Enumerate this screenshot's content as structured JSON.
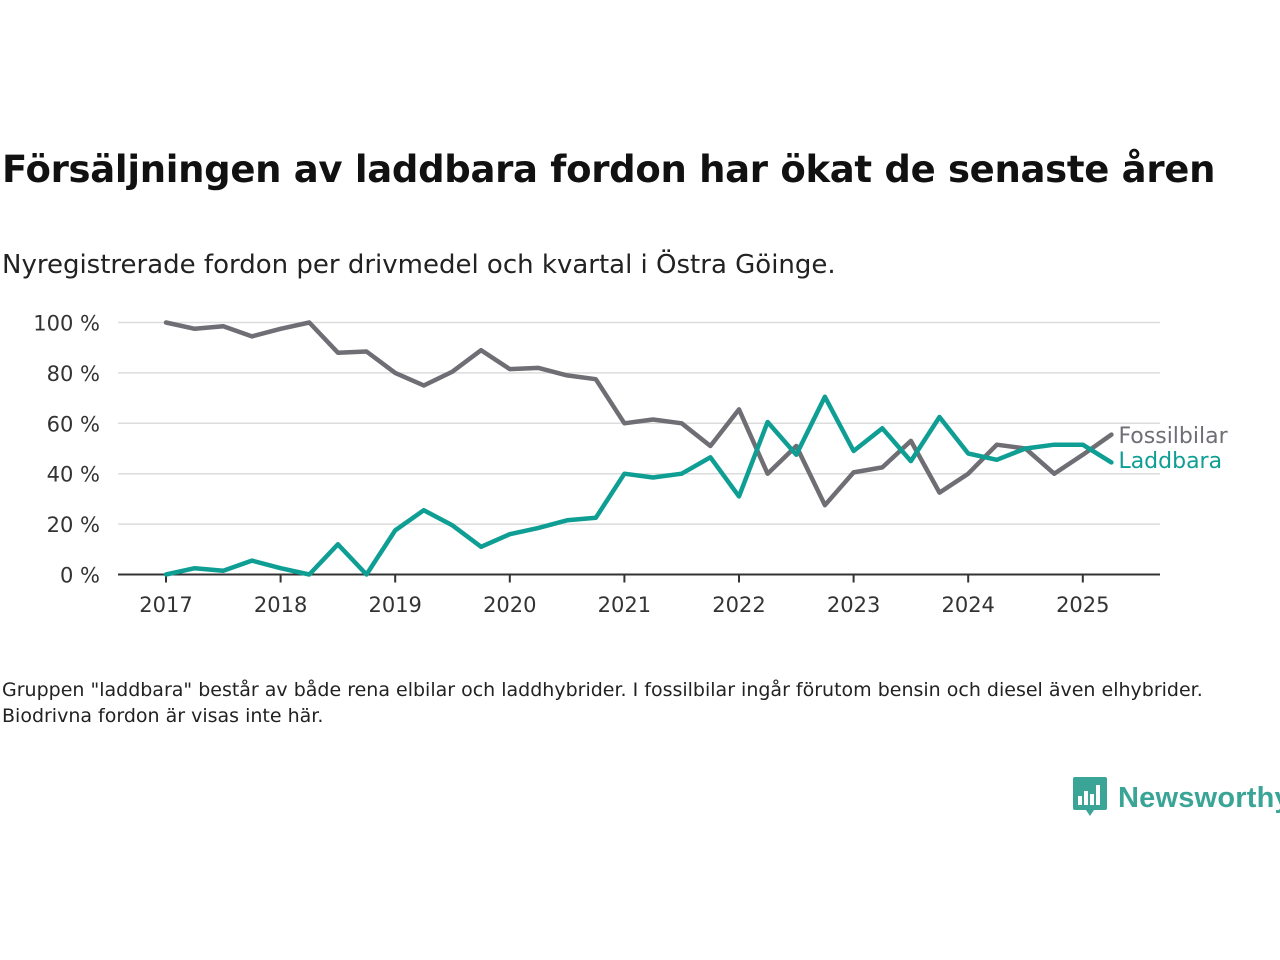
{
  "title": "Försäljningen av laddbara fordon har ökat de senaste åren",
  "subtitle": "Nyregistrerade fordon per drivmedel och kvartal i Östra Göinge.",
  "footnote": "Gruppen \"laddbara\" består av både rena elbilar och laddhybrider. I fossilbilar ingår förutom bensin och diesel även elhybrider. Biodrivna fordon är visas inte här.",
  "brand": {
    "name": "Newsworthy",
    "icon": "newsworthy-logo-icon",
    "color": "#3aa596"
  },
  "chart_data": {
    "type": "line",
    "x_axis": {
      "ticks": [
        "2017",
        "2018",
        "2019",
        "2020",
        "2021",
        "2022",
        "2023",
        "2024",
        "2025"
      ],
      "unit": "quarter"
    },
    "y_axis": {
      "ticks": [
        "0 %",
        "20 %",
        "40 %",
        "60 %",
        "80 %",
        "100 %"
      ],
      "range": [
        0,
        100
      ],
      "grid": true
    },
    "x": [
      "2017 Q1",
      "2017 Q2",
      "2017 Q3",
      "2017 Q4",
      "2018 Q1",
      "2018 Q2",
      "2018 Q3",
      "2018 Q4",
      "2019 Q1",
      "2019 Q2",
      "2019 Q3",
      "2019 Q4",
      "2020 Q1",
      "2020 Q2",
      "2020 Q3",
      "2020 Q4",
      "2021 Q1",
      "2021 Q2",
      "2021 Q3",
      "2021 Q4",
      "2022 Q1",
      "2022 Q2",
      "2022 Q3",
      "2022 Q4",
      "2023 Q1",
      "2023 Q2",
      "2023 Q3",
      "2023 Q4",
      "2024 Q1",
      "2024 Q2",
      "2024 Q3",
      "2024 Q4",
      "2025 Q1",
      "2025 Q2"
    ],
    "series": [
      {
        "name": "Fossilbilar",
        "color": "#6f6e75",
        "values": [
          100,
          97.5,
          98.5,
          94.5,
          97.5,
          100,
          88,
          88.5,
          80,
          75,
          80.5,
          89,
          81.5,
          82,
          79,
          77.5,
          60,
          61.5,
          60,
          51,
          65.5,
          40,
          51,
          27.5,
          40.5,
          42.5,
          53,
          32.5,
          40,
          51.5,
          50,
          40,
          47.5,
          55.5
        ]
      },
      {
        "name": "Laddbara",
        "color": "#0f9e94",
        "values": [
          0,
          2.5,
          1.5,
          5.5,
          2.5,
          0,
          12,
          0,
          17.5,
          25.5,
          19.5,
          11,
          16,
          18.5,
          21.5,
          22.5,
          40,
          38.5,
          40,
          46.5,
          31,
          60.5,
          47.5,
          70.5,
          49,
          58,
          45,
          62.5,
          48,
          45.5,
          50,
          51.5,
          51.5,
          44.5
        ]
      }
    ],
    "legend": "line-end labels"
  }
}
